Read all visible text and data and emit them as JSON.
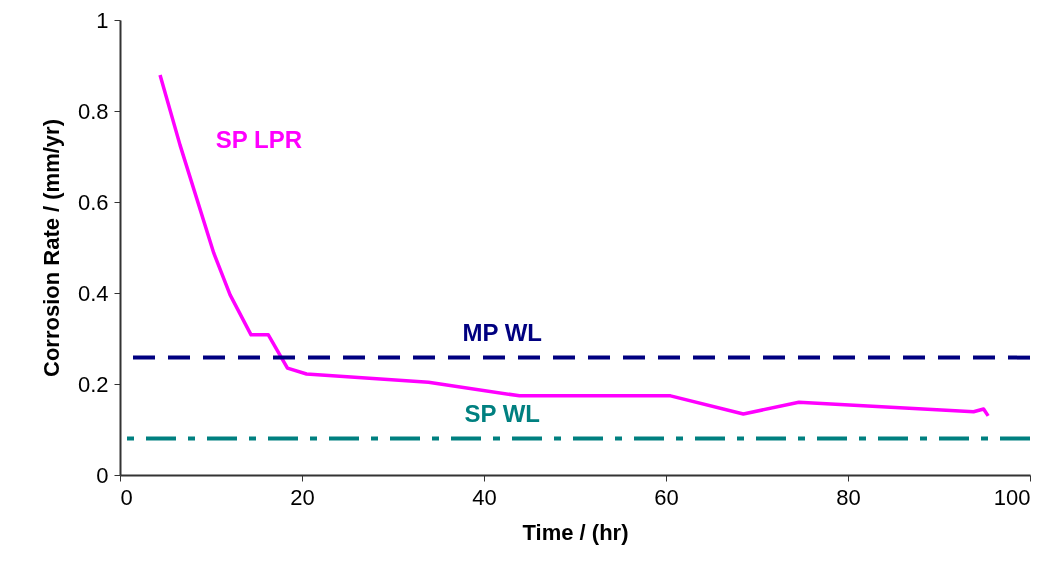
{
  "chart_data": {
    "type": "line",
    "xlabel": "Time / (hr)",
    "ylabel": "Corrosion Rate / (mm/yr)",
    "xlim": [
      0,
      100
    ],
    "xticks": [
      0,
      20,
      40,
      60,
      80,
      100
    ],
    "ylim": [
      0,
      1
    ],
    "yticks": [
      0,
      0.2,
      0.4,
      0.6,
      0.8,
      1
    ],
    "grid": false,
    "marker": "none",
    "series": [
      {
        "name": "SP LPR",
        "color": "#ff00ff",
        "line_style": "solid",
        "x": [
          4.4,
          6.6,
          10.3,
          12.1,
          14.4,
          16.3,
          18.4,
          20.5,
          33.9,
          43.9,
          60.5,
          68.5,
          74.6,
          93.8,
          94.9,
          95.4
        ],
        "values": [
          0.879,
          0.725,
          0.488,
          0.396,
          0.308,
          0.308,
          0.235,
          0.222,
          0.204,
          0.174,
          0.174,
          0.134,
          0.16,
          0.139,
          0.145,
          0.13
        ]
      }
    ],
    "ref_lines": [
      {
        "axis": "y",
        "value": 0.258,
        "label": "MP WL",
        "color": "#000080",
        "line_style": "dashed"
      },
      {
        "axis": "y",
        "value": 0.08,
        "label": "SP WL",
        "color": "#008080",
        "line_style": "dashdot"
      }
    ]
  }
}
